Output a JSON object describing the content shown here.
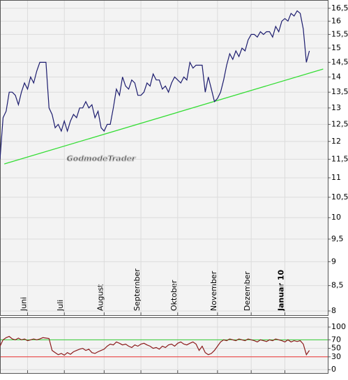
{
  "chart_data": [
    {
      "type": "line",
      "watermark": "GodmodeTrader",
      "log": true,
      "grid": true,
      "xlim": [
        0,
        107
      ],
      "xticks": [
        {
          "value": 9,
          "label": "Juni"
        },
        {
          "value": 21,
          "label": "Juli"
        },
        {
          "value": 34,
          "label": "August"
        },
        {
          "value": 46,
          "label": "September"
        },
        {
          "value": 58,
          "label": "Oktober"
        },
        {
          "value": 71,
          "label": "November"
        },
        {
          "value": 82,
          "label": "Dezember"
        },
        {
          "value": 93,
          "label": "Januar 10",
          "bold": true
        }
      ],
      "ylim": [
        7.92,
        16.83
      ],
      "yticks": [
        8,
        {
          "value": 8.5,
          "label": "8,5"
        },
        9,
        {
          "value": 9.5,
          "label": "9,5"
        },
        10,
        {
          "value": 10.5,
          "label": "10,5"
        },
        11,
        {
          "value": 11.5,
          "label": "11,5"
        },
        12,
        {
          "value": 12.5,
          "label": "12,5"
        },
        13,
        {
          "value": 13.5,
          "label": "13,5"
        },
        14,
        {
          "value": 14.5,
          "label": "14,5"
        },
        15,
        {
          "value": 15.5,
          "label": "15,5"
        },
        16,
        {
          "value": 16.5,
          "label": "16,5"
        }
      ],
      "series": [
        {
          "color": "#1c1c6e",
          "values": [
            11.5,
            12.7,
            12.9,
            13.5,
            13.5,
            13.4,
            13.1,
            13.5,
            13.8,
            13.6,
            14.0,
            13.8,
            14.2,
            14.5,
            14.5,
            14.5,
            13.0,
            12.8,
            12.4,
            12.5,
            12.3,
            12.6,
            12.3,
            12.6,
            12.8,
            12.7,
            13.0,
            13.0,
            13.2,
            13.0,
            13.1,
            12.7,
            12.9,
            12.4,
            12.3,
            12.5,
            12.5,
            13.0,
            13.6,
            13.4,
            14.0,
            13.7,
            13.6,
            13.9,
            13.8,
            13.4,
            13.4,
            13.5,
            13.8,
            13.7,
            14.1,
            13.9,
            13.9,
            13.6,
            13.7,
            13.5,
            13.8,
            14.0,
            13.9,
            13.8,
            14.0,
            13.9,
            14.5,
            14.3,
            14.4,
            14.4,
            14.4,
            13.5,
            14.0,
            13.6,
            13.2,
            13.3,
            13.5,
            13.9,
            14.4,
            14.8,
            14.6,
            14.9,
            14.7,
            15.0,
            14.9,
            15.3,
            15.5,
            15.5,
            15.4,
            15.6,
            15.5,
            15.6,
            15.6,
            15.4,
            15.8,
            15.6,
            16.0,
            16.1,
            16.0,
            16.3,
            16.2,
            16.4,
            16.3,
            15.7,
            14.5,
            14.9
          ]
        }
      ],
      "trendline": {
        "color": "#33dd33",
        "x": [
          1.4,
          105.5
        ],
        "values": [
          11.37,
          14.27
        ]
      }
    },
    {
      "type": "line",
      "grid": true,
      "xlim": [
        0,
        107
      ],
      "ylim": [
        -8,
        123
      ],
      "yticks": [
        0,
        30,
        50,
        70,
        100
      ],
      "levels": [
        {
          "value": 70,
          "color": "#33cc33"
        },
        {
          "value": 30,
          "color": "#ee3333"
        }
      ],
      "series": [
        {
          "color": "#8b1a1a",
          "values": [
            55,
            70,
            75,
            78,
            72,
            70,
            74,
            70,
            72,
            68,
            70,
            72,
            70,
            72,
            75,
            74,
            73,
            45,
            40,
            35,
            38,
            34,
            40,
            36,
            42,
            45,
            48,
            50,
            45,
            48,
            40,
            38,
            42,
            45,
            48,
            55,
            60,
            58,
            65,
            62,
            58,
            60,
            55,
            52,
            58,
            55,
            60,
            62,
            58,
            55,
            50,
            52,
            48,
            55,
            52,
            58,
            60,
            55,
            62,
            65,
            60,
            58,
            62,
            65,
            60,
            45,
            55,
            40,
            35,
            38,
            45,
            55,
            65,
            70,
            68,
            72,
            70,
            68,
            72,
            70,
            68,
            72,
            70,
            68,
            65,
            70,
            68,
            66,
            70,
            68,
            72,
            70,
            68,
            65,
            70,
            65,
            68,
            66,
            68,
            60,
            35,
            45
          ]
        }
      ]
    }
  ]
}
